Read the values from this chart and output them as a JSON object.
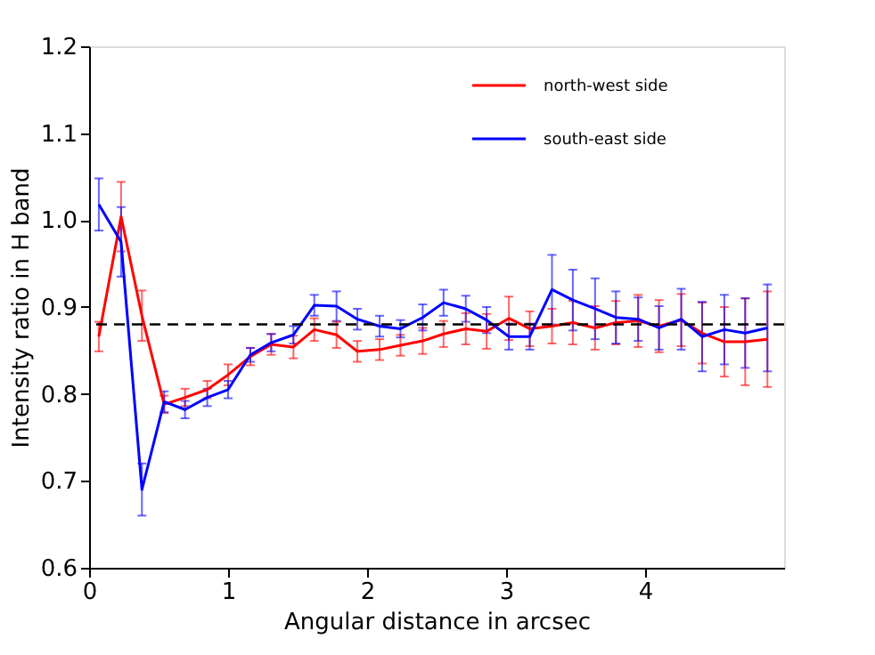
{
  "chart_data": {
    "type": "line",
    "xlabel": "Angular distance in arcsec",
    "ylabel": "Intensity ratio in H band",
    "x": [
      0.07,
      0.23,
      0.38,
      0.54,
      0.69,
      0.85,
      1.0,
      1.16,
      1.31,
      1.47,
      1.62,
      1.78,
      1.93,
      2.09,
      2.24,
      2.4,
      2.55,
      2.71,
      2.86,
      3.02,
      3.17,
      3.33,
      3.48,
      3.64,
      3.79,
      3.95,
      4.1,
      4.26,
      4.41,
      4.57,
      4.72,
      4.88
    ],
    "xlim": [
      0,
      5
    ],
    "xticks": [
      0,
      1,
      2,
      3,
      4
    ],
    "ylim": [
      0.6,
      1.2
    ],
    "yticks": [
      0.6,
      0.7,
      0.8,
      0.9,
      {
        "value": 1,
        "label": "1.0"
      },
      1.1,
      1.2
    ],
    "grid": false,
    "legend": "top right",
    "line_style": "solid",
    "marker": "none",
    "ref_lines": [
      {
        "axis": "y",
        "value": 0.88,
        "color": "#000000",
        "line_style": "dashed"
      }
    ],
    "series": [
      {
        "name": "north-west side",
        "color": "#ff0000",
        "values": [
          0.866,
          1.004,
          0.89,
          0.788,
          0.796,
          0.805,
          0.822,
          0.843,
          0.857,
          0.854,
          0.874,
          0.868,
          0.849,
          0.851,
          0.856,
          0.861,
          0.869,
          0.875,
          0.872,
          0.887,
          0.875,
          0.878,
          0.882,
          0.876,
          0.882,
          0.884,
          0.878,
          0.885,
          0.87,
          0.86,
          0.86,
          0.863
        ],
        "errors": [
          0.017,
          0.04,
          0.029,
          0.01,
          0.01,
          0.01,
          0.012,
          0.01,
          0.012,
          0.013,
          0.013,
          0.015,
          0.012,
          0.012,
          0.012,
          0.015,
          0.015,
          0.018,
          0.02,
          0.025,
          0.02,
          0.02,
          0.025,
          0.025,
          0.025,
          0.03,
          0.03,
          0.03,
          0.035,
          0.04,
          0.05,
          0.055
        ]
      },
      {
        "name": "south-east side",
        "color": "#0000ff",
        "values": [
          1.018,
          0.975,
          0.69,
          0.791,
          0.782,
          0.796,
          0.805,
          0.845,
          0.859,
          0.868,
          0.902,
          0.901,
          0.886,
          0.878,
          0.875,
          0.888,
          0.905,
          0.898,
          0.885,
          0.866,
          0.866,
          0.92,
          0.908,
          0.898,
          0.888,
          0.886,
          0.876,
          0.886,
          0.866,
          0.874,
          0.87,
          0.876
        ],
        "errors": [
          0.03,
          0.04,
          0.03,
          0.012,
          0.01,
          0.01,
          0.01,
          0.008,
          0.01,
          0.01,
          0.012,
          0.017,
          0.012,
          0.012,
          0.01,
          0.015,
          0.015,
          0.015,
          0.015,
          0.015,
          0.015,
          0.04,
          0.035,
          0.035,
          0.03,
          0.025,
          0.025,
          0.035,
          0.04,
          0.04,
          0.04,
          0.05
        ]
      }
    ]
  }
}
